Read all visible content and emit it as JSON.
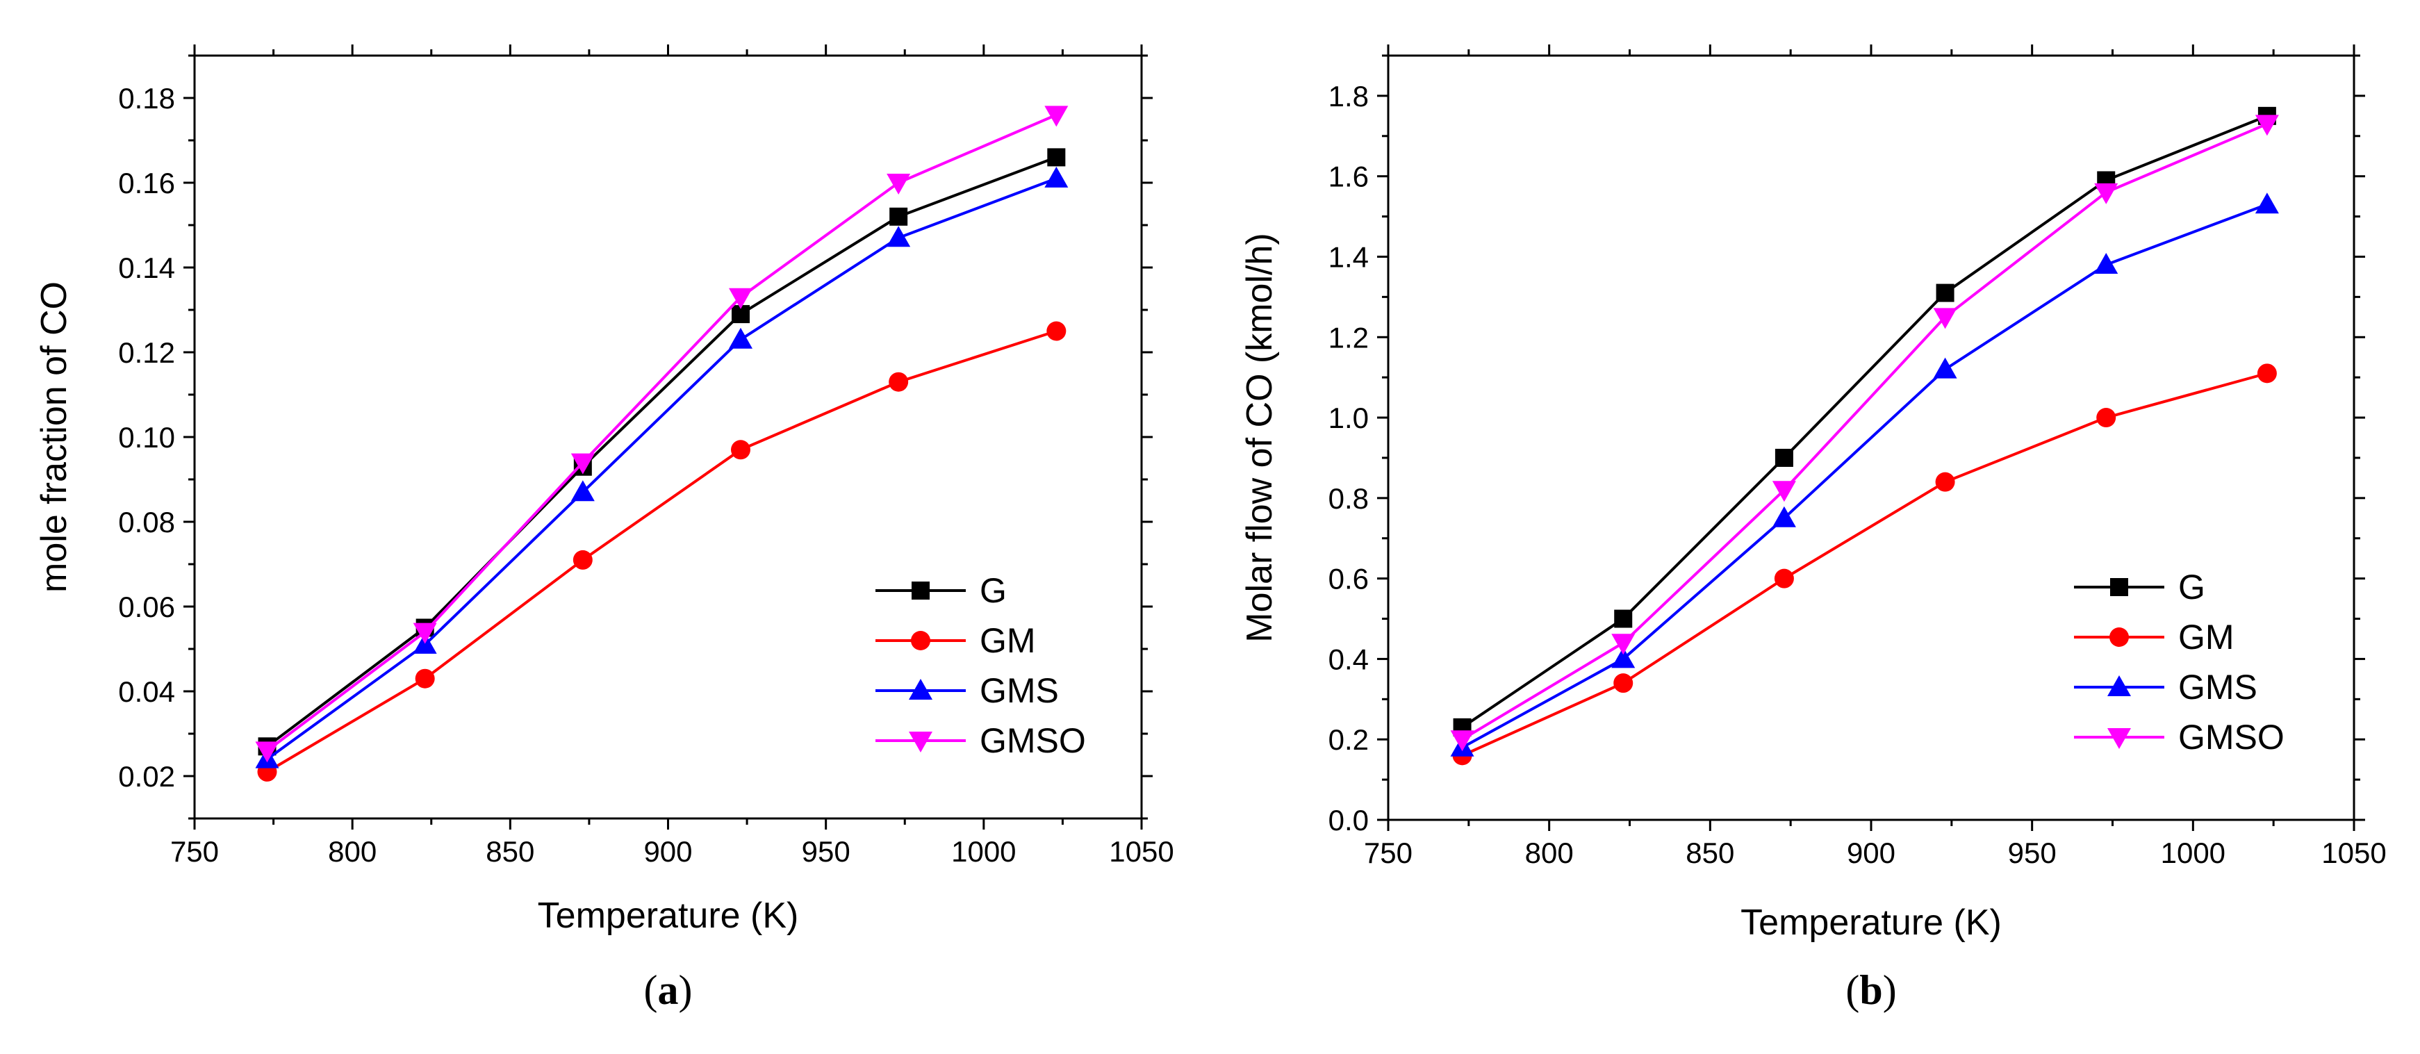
{
  "chart_data": [
    {
      "type": "line",
      "caption": {
        "open": "(",
        "letter": "a",
        "close": ")"
      },
      "xlabel": "Temperature (K)",
      "ylabel": "mole fraction of CO",
      "xlim": [
        750,
        1050
      ],
      "ylim": [
        0.01,
        0.19
      ],
      "xticks": [
        750,
        800,
        850,
        900,
        950,
        1000,
        1050
      ],
      "yticks": [
        0.02,
        0.04,
        0.06,
        0.08,
        0.1,
        0.12,
        0.14,
        0.16,
        0.18
      ],
      "ytick_labels": [
        "0.02",
        "0.04",
        "0.06",
        "0.08",
        "0.10",
        "0.12",
        "0.14",
        "0.16",
        "0.18"
      ],
      "grid": false,
      "legend_position": "bottom-right",
      "x": [
        773,
        823,
        873,
        923,
        973,
        1023
      ],
      "series": [
        {
          "name": "G",
          "color": "#000000",
          "marker": "square",
          "values": [
            0.027,
            0.055,
            0.093,
            0.129,
            0.152,
            0.166
          ]
        },
        {
          "name": "GM",
          "color": "#ff0000",
          "marker": "circle",
          "values": [
            0.021,
            0.043,
            0.071,
            0.097,
            0.113,
            0.125
          ]
        },
        {
          "name": "GMS",
          "color": "#0000ff",
          "marker": "triangle-up",
          "values": [
            0.024,
            0.051,
            0.087,
            0.123,
            0.147,
            0.161
          ]
        },
        {
          "name": "GMSO",
          "color": "#ff00ff",
          "marker": "triangle-down",
          "values": [
            0.026,
            0.054,
            0.094,
            0.133,
            0.16,
            0.176
          ]
        }
      ]
    },
    {
      "type": "line",
      "caption": {
        "open": "(",
        "letter": "b",
        "close": ")"
      },
      "xlabel": "Temperature (K)",
      "ylabel": "Molar flow of CO  (kmol/h)",
      "xlim": [
        750,
        1050
      ],
      "ylim": [
        0.0,
        1.9
      ],
      "xticks": [
        750,
        800,
        850,
        900,
        950,
        1000,
        1050
      ],
      "yticks": [
        0.0,
        0.2,
        0.4,
        0.6,
        0.8,
        1.0,
        1.2,
        1.4,
        1.6,
        1.8
      ],
      "ytick_labels": [
        "0.0",
        "0.2",
        "0.4",
        "0.6",
        "0.8",
        "1.0",
        "1.2",
        "1.4",
        "1.6",
        "1.8"
      ],
      "grid": false,
      "legend_position": "bottom-right",
      "x": [
        773,
        823,
        873,
        923,
        973,
        1023
      ],
      "series": [
        {
          "name": "G",
          "color": "#000000",
          "marker": "square",
          "values": [
            0.23,
            0.5,
            0.9,
            1.31,
            1.59,
            1.75
          ]
        },
        {
          "name": "GM",
          "color": "#ff0000",
          "marker": "circle",
          "values": [
            0.16,
            0.34,
            0.6,
            0.84,
            1.0,
            1.11
          ]
        },
        {
          "name": "GMS",
          "color": "#0000ff",
          "marker": "triangle-up",
          "values": [
            0.18,
            0.4,
            0.75,
            1.12,
            1.38,
            1.53
          ]
        },
        {
          "name": "GMSO",
          "color": "#ff00ff",
          "marker": "triangle-down",
          "values": [
            0.2,
            0.44,
            0.82,
            1.25,
            1.56,
            1.73
          ]
        }
      ]
    }
  ]
}
